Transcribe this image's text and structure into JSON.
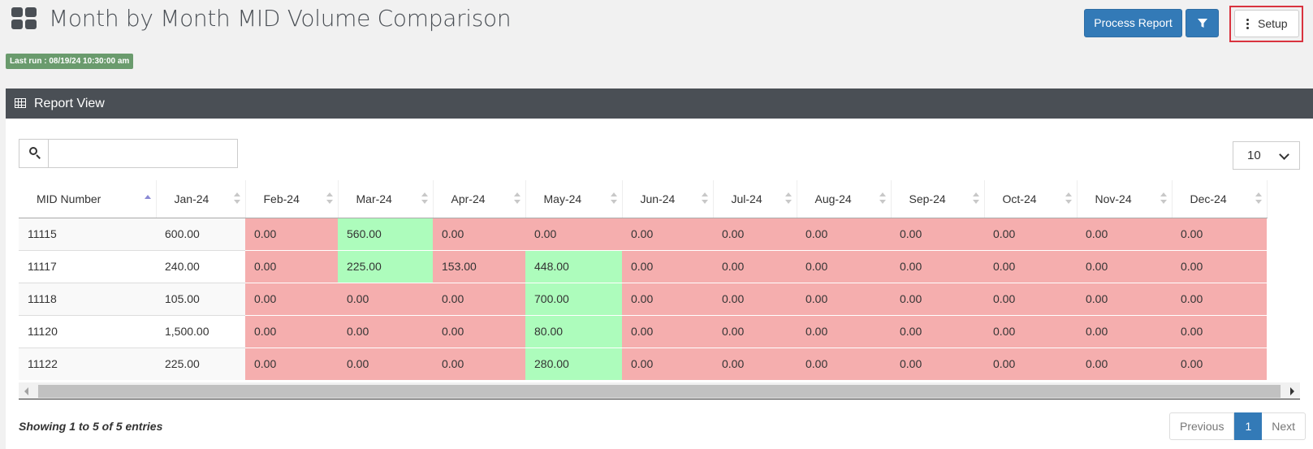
{
  "header": {
    "title": "Month by Month MID Volume Comparison",
    "last_run": "Last run : 08/19/24 10:30:00 am",
    "process_label": "Process Report",
    "setup_label": "Setup"
  },
  "panel": {
    "title": "Report View"
  },
  "search": {
    "value": "",
    "placeholder": ""
  },
  "page_size": "10",
  "table": {
    "columns": [
      "MID Number",
      "Jan-24",
      "Feb-24",
      "Mar-24",
      "Apr-24",
      "May-24",
      "Jun-24",
      "Jul-24",
      "Aug-24",
      "Sep-24",
      "Oct-24",
      "Nov-24",
      "Dec-24"
    ],
    "rows": [
      [
        "11115",
        "600.00",
        "0.00",
        "560.00",
        "0.00",
        "0.00",
        "0.00",
        "0.00",
        "0.00",
        "0.00",
        "0.00",
        "0.00",
        "0.00"
      ],
      [
        "11117",
        "240.00",
        "0.00",
        "225.00",
        "153.00",
        "448.00",
        "0.00",
        "0.00",
        "0.00",
        "0.00",
        "0.00",
        "0.00",
        "0.00"
      ],
      [
        "11118",
        "105.00",
        "0.00",
        "0.00",
        "0.00",
        "700.00",
        "0.00",
        "0.00",
        "0.00",
        "0.00",
        "0.00",
        "0.00",
        "0.00"
      ],
      [
        "11120",
        "1,500.00",
        "0.00",
        "0.00",
        "0.00",
        "80.00",
        "0.00",
        "0.00",
        "0.00",
        "0.00",
        "0.00",
        "0.00",
        "0.00"
      ],
      [
        "11122",
        "225.00",
        "0.00",
        "0.00",
        "0.00",
        "280.00",
        "0.00",
        "0.00",
        "0.00",
        "0.00",
        "0.00",
        "0.00",
        "0.00"
      ]
    ],
    "cell_status": [
      [
        "plain",
        "plain",
        "red",
        "green",
        "red",
        "red",
        "red",
        "red",
        "red",
        "red",
        "red",
        "red",
        "red"
      ],
      [
        "plain",
        "plain",
        "red",
        "green",
        "red",
        "green",
        "red",
        "red",
        "red",
        "red",
        "red",
        "red",
        "red"
      ],
      [
        "plain",
        "plain",
        "red",
        "red",
        "red",
        "green",
        "red",
        "red",
        "red",
        "red",
        "red",
        "red",
        "red"
      ],
      [
        "plain",
        "plain",
        "red",
        "red",
        "red",
        "green",
        "red",
        "red",
        "red",
        "red",
        "red",
        "red",
        "red"
      ],
      [
        "plain",
        "plain",
        "red",
        "red",
        "red",
        "green",
        "red",
        "red",
        "red",
        "red",
        "red",
        "red",
        "red"
      ]
    ],
    "sorted_column": "MID Number",
    "sort_direction": "ascending"
  },
  "footer": {
    "info": "Showing 1 to 5 of 5 entries",
    "previous": "Previous",
    "current_page": "1",
    "next": "Next"
  },
  "colors": {
    "primary": "#337ab7",
    "header_bg": "#4a4f55",
    "decrease": "#f5aeae",
    "increase": "#adfcbc",
    "last_run_badge": "#6a9b6d",
    "highlight_outline": "#d9333f"
  },
  "icons": {
    "title": "dashboard-grid-icon",
    "filter": "filter-funnel-icon",
    "setup": "vertical-ellipsis-icon",
    "panel": "table-icon",
    "search": "search-icon",
    "page_size": "chevron-down-icon"
  }
}
